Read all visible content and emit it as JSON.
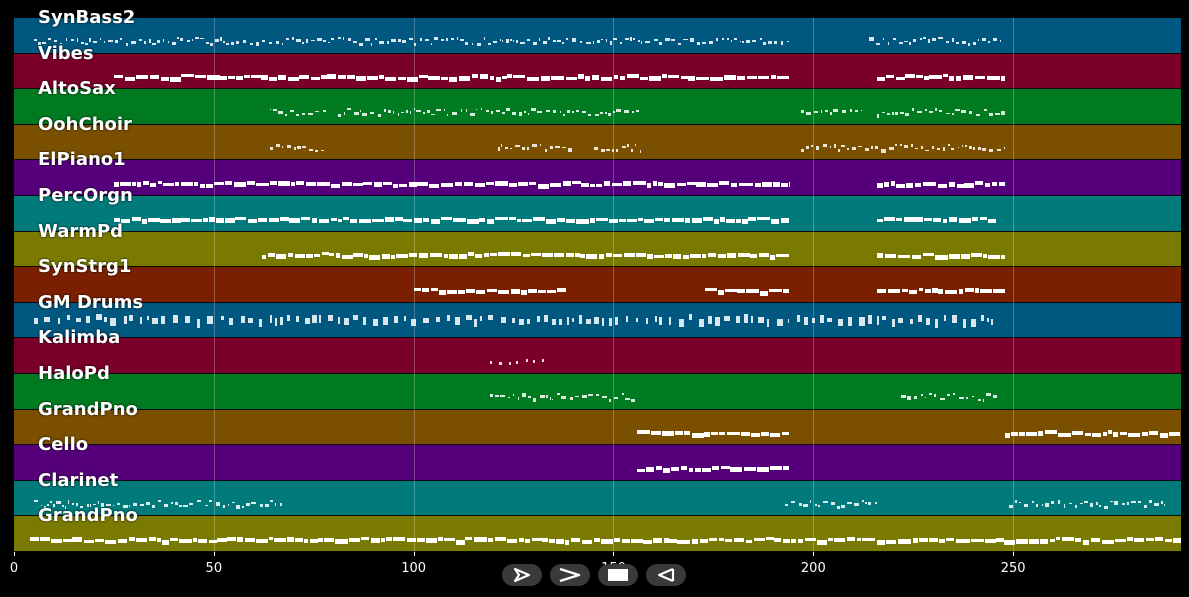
{
  "tracks": [
    {
      "name": "SynBass2",
      "color": "#00577f",
      "segments": [
        [
          5,
          194
        ],
        [
          214,
          247
        ]
      ],
      "density": "fine"
    },
    {
      "name": "Vibes",
      "color": "#7a002b",
      "segments": [
        [
          25,
          194
        ],
        [
          216,
          248
        ]
      ],
      "density": "block"
    },
    {
      "name": "AltoSax",
      "color": "#007a20",
      "segments": [
        [
          64,
          78
        ],
        [
          81,
          157
        ],
        [
          197,
          212
        ],
        [
          216,
          248
        ]
      ],
      "density": "fine"
    },
    {
      "name": "OohChoir",
      "color": "#7a4f00",
      "segments": [
        [
          64,
          78
        ],
        [
          121,
          140
        ],
        [
          145,
          157
        ],
        [
          197,
          248
        ]
      ],
      "density": "fine"
    },
    {
      "name": "ElPiano1",
      "color": "#55007a",
      "segments": [
        [
          25,
          194
        ],
        [
          216,
          248
        ]
      ],
      "density": "block"
    },
    {
      "name": "PercOrgn",
      "color": "#007a7a",
      "segments": [
        [
          25,
          194
        ],
        [
          216,
          246
        ]
      ],
      "density": "block"
    },
    {
      "name": "WarmPd",
      "color": "#7a7a00",
      "segments": [
        [
          62,
          194
        ],
        [
          216,
          248
        ]
      ],
      "density": "block"
    },
    {
      "name": "SynStrg1",
      "color": "#7a2000",
      "segments": [
        [
          100,
          138
        ],
        [
          173,
          194
        ],
        [
          216,
          248
        ]
      ],
      "density": "block"
    },
    {
      "name": "GM Drums",
      "color": "#00577f",
      "segments": [
        [
          5,
          194
        ],
        [
          196,
          245
        ]
      ],
      "density": "drums"
    },
    {
      "name": "Kalimba",
      "color": "#7a002b",
      "segments": [
        [
          119,
          133
        ]
      ],
      "density": "sparse"
    },
    {
      "name": "HaloPd",
      "color": "#007a20",
      "segments": [
        [
          119,
          156
        ],
        [
          222,
          246
        ]
      ],
      "density": "fine"
    },
    {
      "name": "GrandPno",
      "color": "#7a4f00",
      "segments": [
        [
          156,
          194
        ],
        [
          248,
          292
        ]
      ],
      "density": "block"
    },
    {
      "name": "Cello",
      "color": "#55007a",
      "segments": [
        [
          156,
          194
        ]
      ],
      "density": "block"
    },
    {
      "name": "Clarinet",
      "color": "#007a7a",
      "segments": [
        [
          5,
          67
        ],
        [
          193,
          216
        ],
        [
          249,
          288
        ]
      ],
      "density": "fine"
    },
    {
      "name": "GrandPno",
      "color": "#7a7a00",
      "segments": [
        [
          4,
          292
        ]
      ],
      "density": "block"
    }
  ],
  "axis": {
    "min": 0,
    "max": 292,
    "ticks": [
      {
        "value": 0,
        "label": "0"
      },
      {
        "value": 50,
        "label": "50"
      },
      {
        "value": 100,
        "label": "100"
      },
      {
        "value": 150,
        "label": "150"
      },
      {
        "value": 200,
        "label": "200"
      },
      {
        "value": 250,
        "label": "250"
      }
    ]
  },
  "controls": [
    {
      "name": "play-icon",
      "label": "play"
    },
    {
      "name": "fast-forward-icon",
      "label": "forward"
    },
    {
      "name": "stop-icon",
      "label": "stop"
    },
    {
      "name": "rewind-icon",
      "label": "rewind"
    }
  ]
}
